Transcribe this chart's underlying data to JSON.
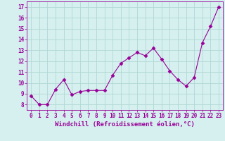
{
  "x": [
    0,
    1,
    2,
    3,
    4,
    5,
    6,
    7,
    8,
    9,
    10,
    11,
    12,
    13,
    14,
    15,
    16,
    17,
    18,
    19,
    20,
    21,
    22,
    23
  ],
  "y": [
    8.8,
    8.0,
    8.0,
    9.4,
    10.3,
    8.9,
    9.2,
    9.3,
    9.3,
    9.3,
    10.7,
    11.8,
    12.3,
    12.8,
    12.5,
    13.2,
    12.2,
    11.1,
    10.3,
    9.7,
    10.5,
    13.7,
    15.2,
    17.0
  ],
  "line_color": "#990099",
  "marker": "D",
  "marker_size": 2.5,
  "bg_color": "#d5f0ee",
  "grid_color": "#b0d8d4",
  "xlabel": "Windchill (Refroidissement éolien,°C)",
  "ylim": [
    7.5,
    17.5
  ],
  "xlim": [
    -0.5,
    23.5
  ],
  "yticks": [
    8,
    9,
    10,
    11,
    12,
    13,
    14,
    15,
    16,
    17
  ],
  "xticks": [
    0,
    1,
    2,
    3,
    4,
    5,
    6,
    7,
    8,
    9,
    10,
    11,
    12,
    13,
    14,
    15,
    16,
    17,
    18,
    19,
    20,
    21,
    22,
    23
  ],
  "tick_color": "#990099",
  "label_color": "#990099",
  "tick_fontsize": 5.5,
  "xlabel_fontsize": 6.5
}
